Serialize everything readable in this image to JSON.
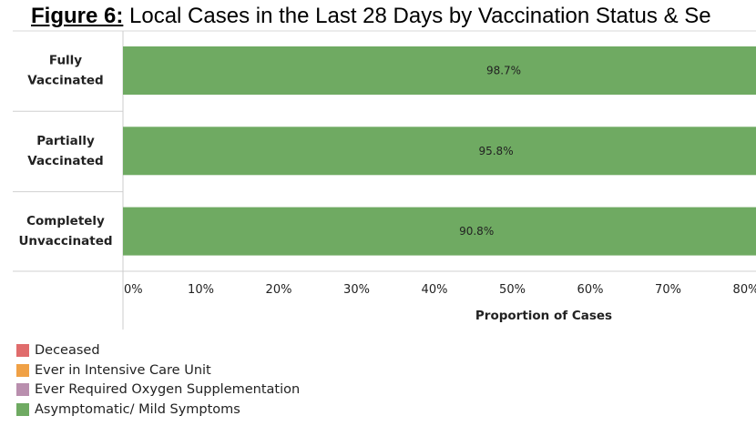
{
  "title": {
    "lead": "Figure 6:",
    "text": "Local Cases in the Last 28 Days by Vaccination Status & Se"
  },
  "chart_data": {
    "type": "bar",
    "orientation": "horizontal",
    "stacked": true,
    "categories": [
      [
        "Fully",
        "Vaccinated"
      ],
      [
        "Partially",
        "Vaccinated"
      ],
      [
        "Completely",
        "Unvaccinated"
      ]
    ],
    "series": [
      {
        "name": "Asymptomatic/ Mild Symptoms",
        "color": "#6faa62",
        "values": [
          98.7,
          95.8,
          90.8
        ],
        "labels": [
          "98.7%",
          "95.8%",
          "90.8%"
        ]
      }
    ],
    "xlabel": "Proportion of Cases",
    "xlim": [
      0,
      100
    ],
    "xticks": [
      "0%",
      "10%",
      "20%",
      "30%",
      "40%",
      "50%",
      "60%",
      "70%",
      "80%"
    ],
    "grid": false
  },
  "legend": [
    {
      "label": "Deceased",
      "color": "#e06c6c"
    },
    {
      "label": "Ever in Intensive Care Unit",
      "color": "#f0a146"
    },
    {
      "label": "Ever Required Oxygen Supplementation",
      "color": "#b98fae"
    },
    {
      "label": "Asymptomatic/ Mild Symptoms",
      "color": "#6faa62"
    }
  ]
}
